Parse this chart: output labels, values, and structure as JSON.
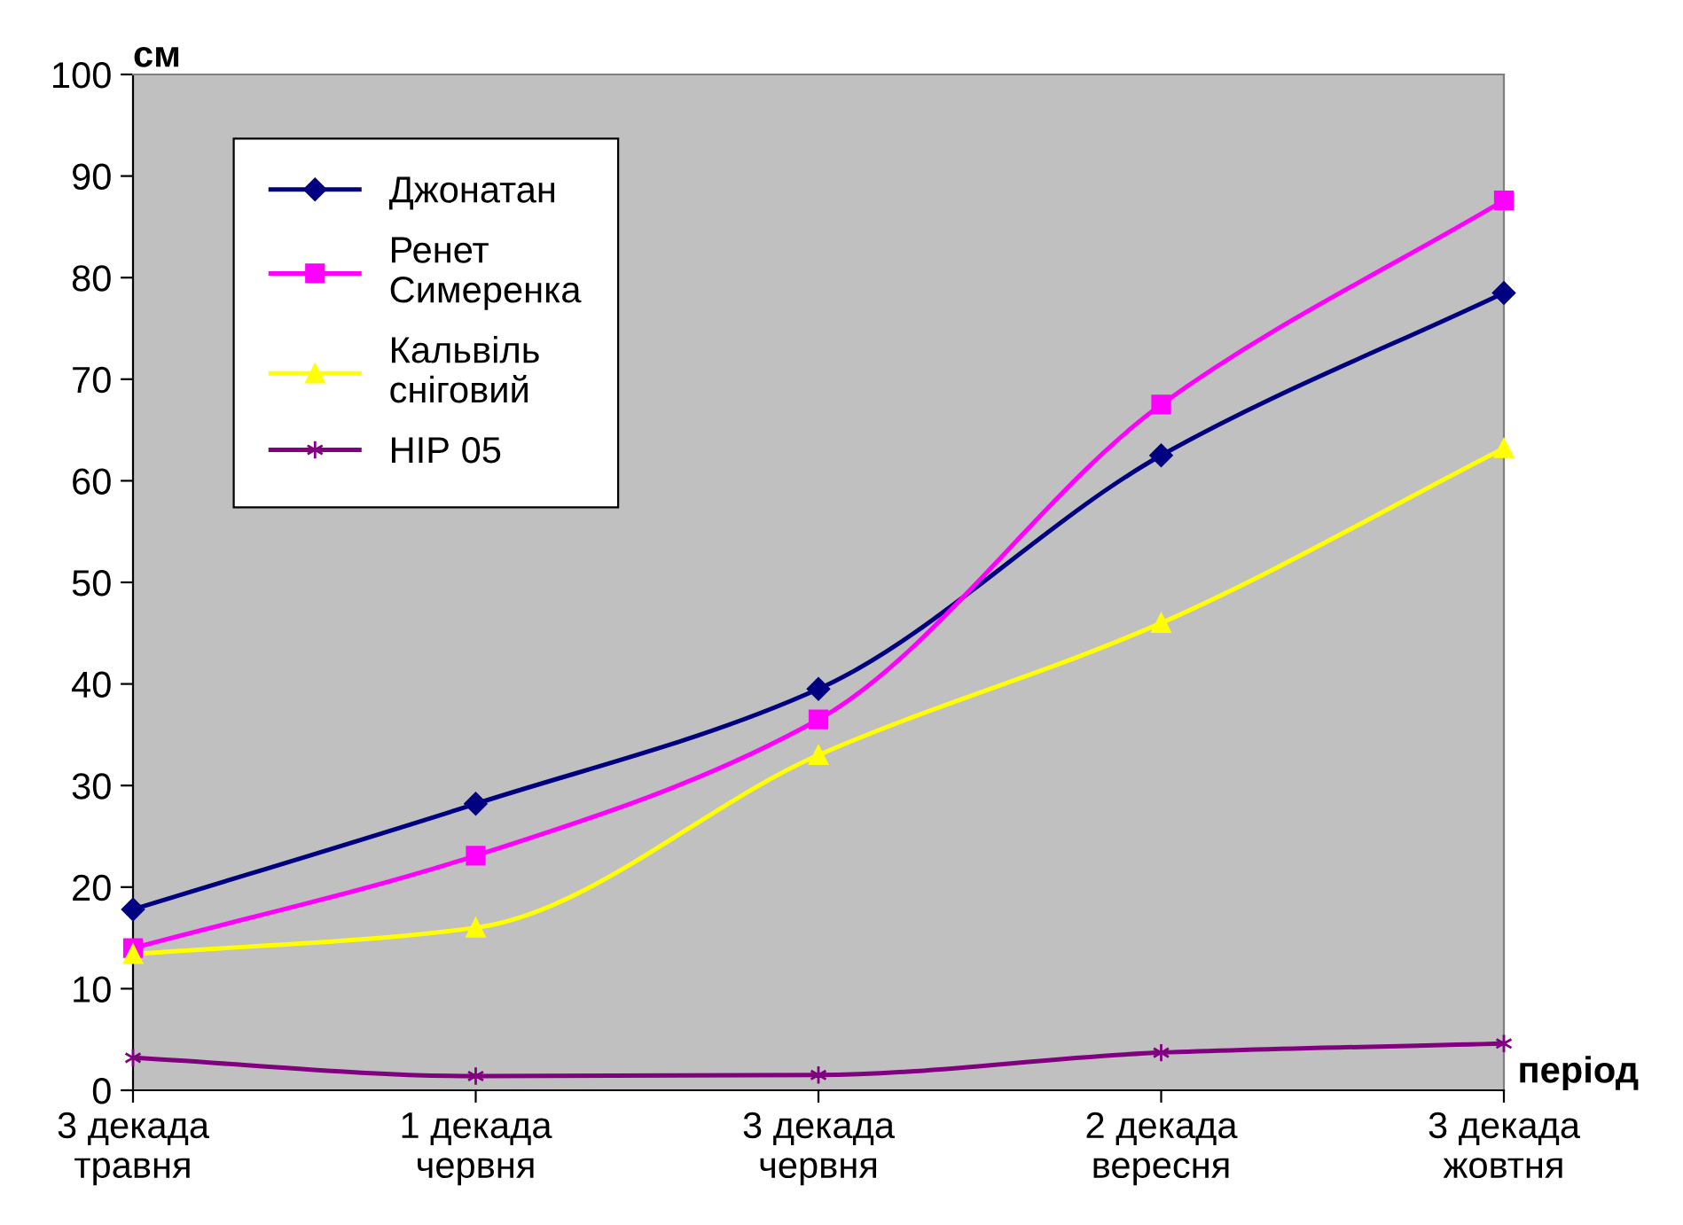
{
  "chart_data": {
    "type": "line",
    "xlabel": "період",
    "ylabel": "см",
    "categories": [
      "3 декада\nтравня",
      "1 декада\nчервня",
      "3 декада\nчервня",
      "2 декада\nвересня",
      "3 декада\nжовтня"
    ],
    "ylim": [
      0,
      100
    ],
    "yticks": [
      0,
      10,
      20,
      30,
      40,
      50,
      60,
      70,
      80,
      90,
      100
    ],
    "grid": false,
    "legend": "top left",
    "series": [
      {
        "name": "Джонатан",
        "color": "#000080",
        "marker": "diamond",
        "values": [
          17.8,
          28.2,
          39.5,
          62.5,
          78.5
        ]
      },
      {
        "name": "Ренет\nСимеренка",
        "color": "#ff00ff",
        "marker": "square",
        "values": [
          14.0,
          23.1,
          36.5,
          67.5,
          87.6
        ]
      },
      {
        "name": "Кальвіль\nсніговий",
        "color": "#ffff00",
        "marker": "triangle",
        "values": [
          13.4,
          16.0,
          33.0,
          46.0,
          63.2
        ]
      },
      {
        "name": "НІР 05",
        "color": "#800080",
        "marker": "cross",
        "values": [
          3.2,
          1.4,
          1.5,
          3.7,
          4.6
        ]
      }
    ]
  }
}
